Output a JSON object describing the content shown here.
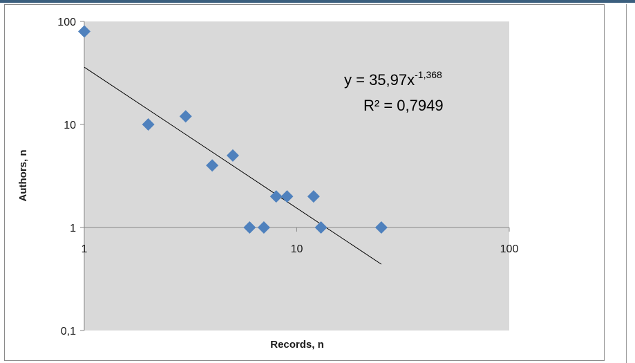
{
  "chart_data": {
    "type": "scatter",
    "xscale": "log",
    "yscale": "log",
    "xlim": [
      1,
      100
    ],
    "ylim": [
      0.1,
      100
    ],
    "xlabel": "Records, n",
    "ylabel": "Authors, n",
    "x_tick_labels": [
      "1",
      "10",
      "100"
    ],
    "y_tick_labels": [
      "0,1",
      "1",
      "10",
      "100"
    ],
    "x_ticks": [
      1,
      10,
      100
    ],
    "y_ticks": [
      0.1,
      1,
      10,
      100
    ],
    "grid": false,
    "series": [
      {
        "x": [
          1,
          2,
          3,
          4,
          5,
          6,
          7,
          8,
          9,
          12,
          13,
          25
        ],
        "y": [
          80,
          10,
          12,
          4,
          5,
          1,
          1,
          2,
          2,
          2,
          1,
          1
        ]
      }
    ],
    "trendline": {
      "type": "power",
      "a": 35.97,
      "b": -1.368,
      "x_range": [
        1,
        25
      ],
      "equation_main": "y = 35,97x",
      "equation_exponent": "-1,368",
      "r_squared": "R² = 0,7949"
    },
    "colors": {
      "plot_background": "#d9d9d9",
      "marker": "#4f81bd",
      "trendline": "#000000"
    }
  }
}
